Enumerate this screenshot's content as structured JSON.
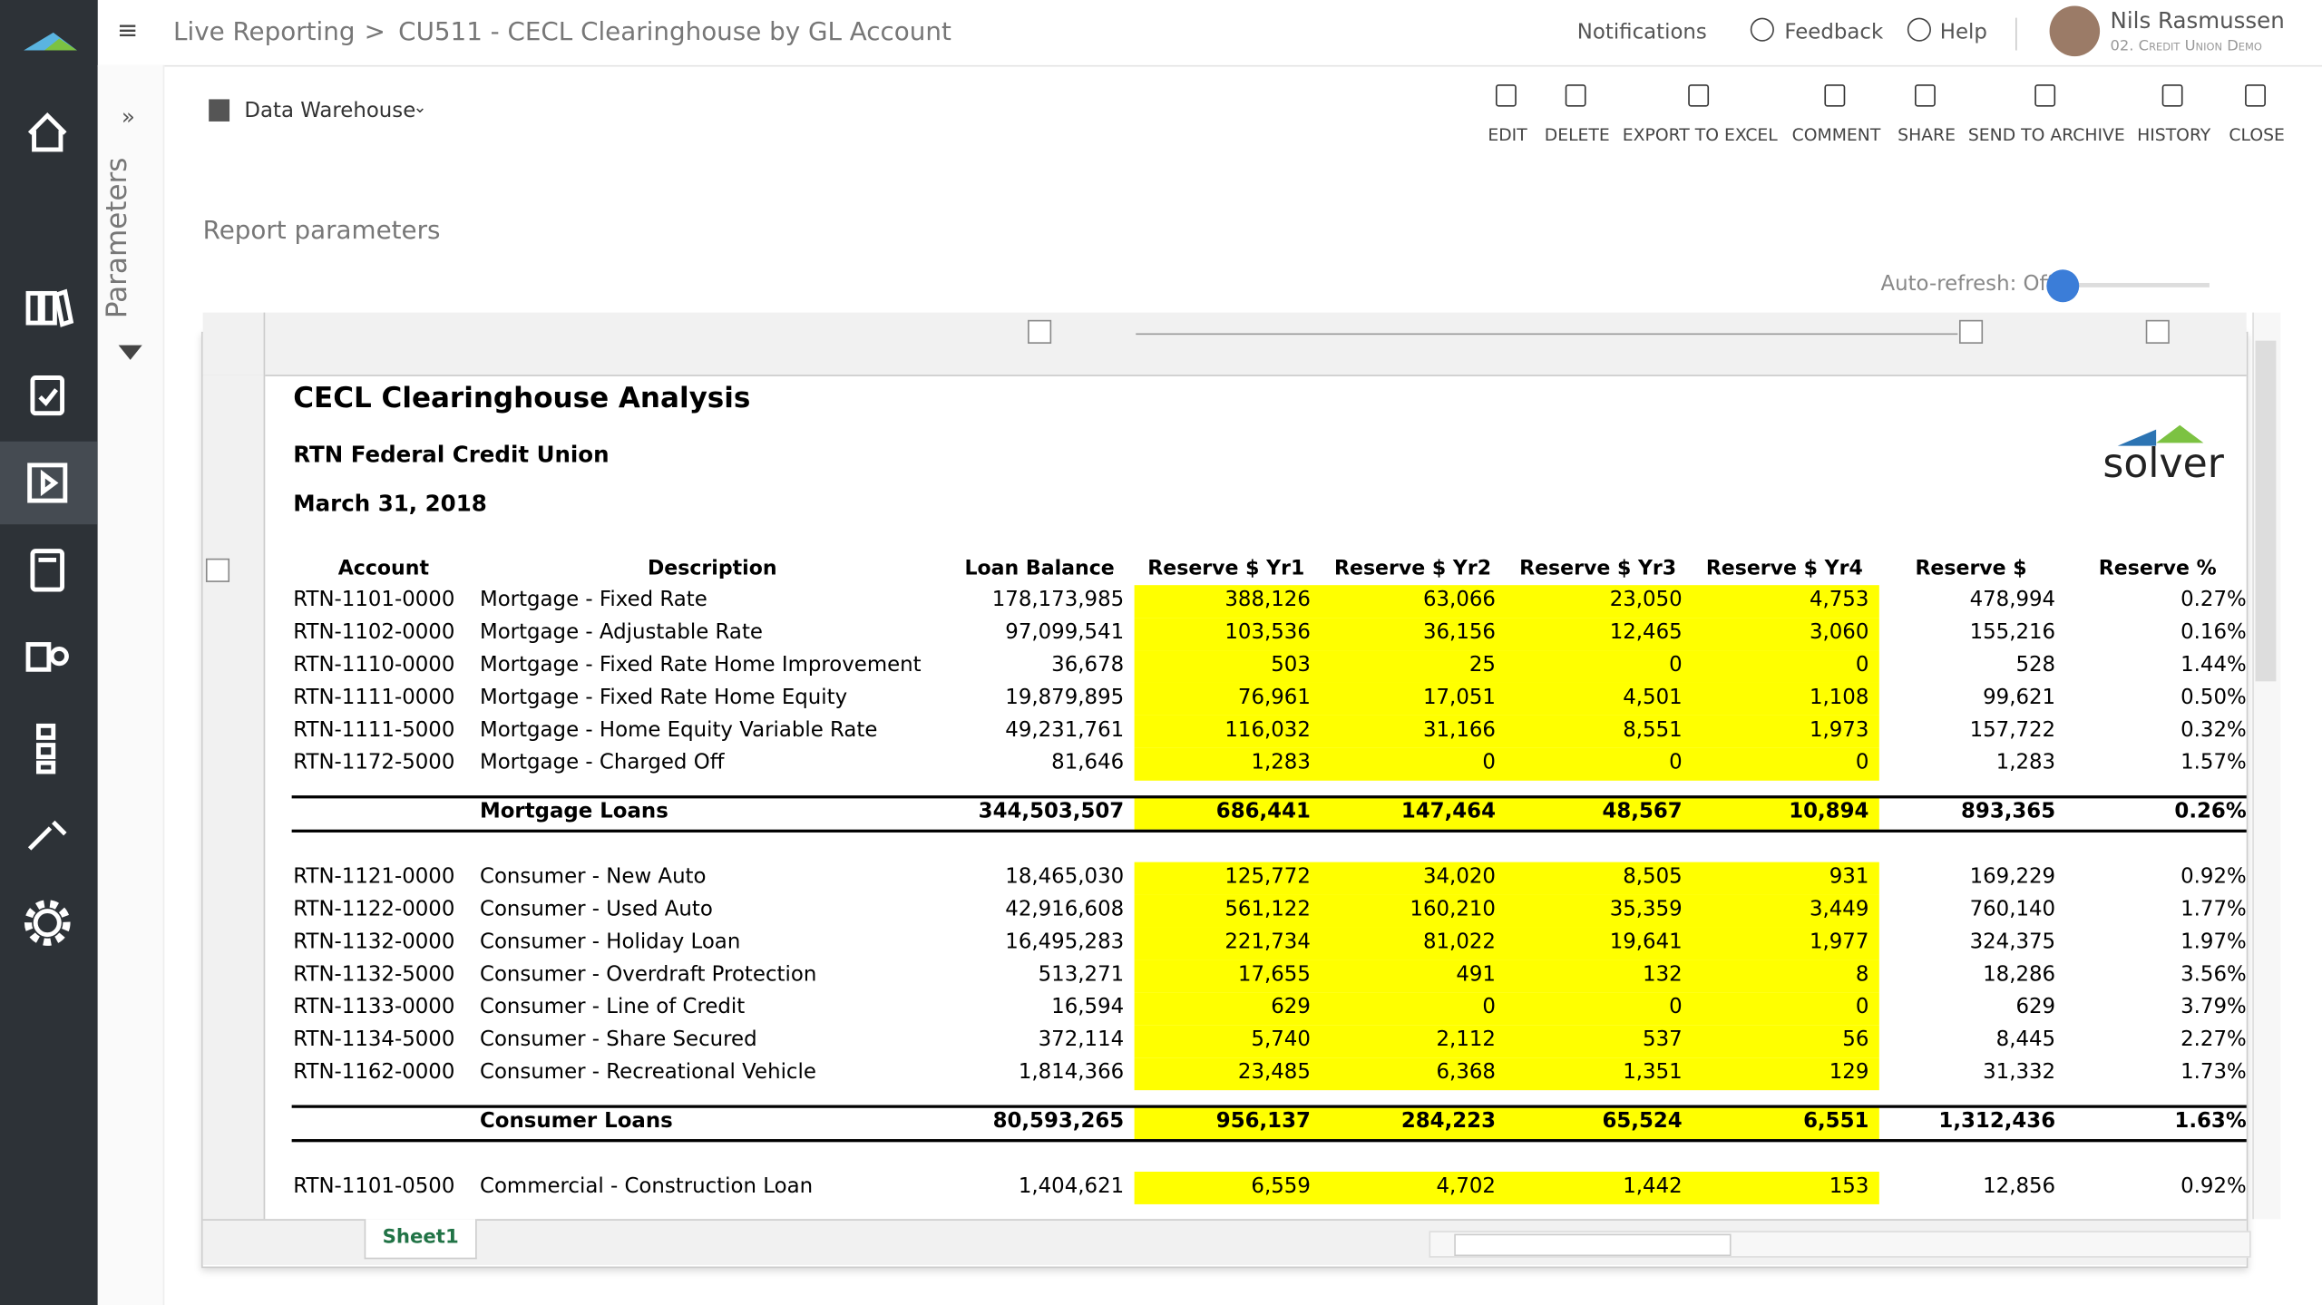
{
  "header": {
    "breadcrumb": {
      "root": "Live Reporting",
      "separator": ">",
      "page": "CU511 - CECL Clearinghouse by GL Account"
    },
    "notifications": "Notifications",
    "feedback": "Feedback",
    "help": "Help",
    "user": {
      "name": "Nils Rasmussen",
      "org": "02. Credit Union Demo"
    }
  },
  "sidebar": {
    "label": "Parameters"
  },
  "toolbar": {
    "source": "Data Warehouse",
    "actions": [
      "EDIT",
      "DELETE",
      "EXPORT TO EXCEL",
      "COMMENT",
      "SHARE",
      "SEND TO ARCHIVE",
      "HISTORY",
      "CLOSE"
    ]
  },
  "report_parameters": "Report parameters",
  "auto_refresh": "Auto-refresh: Off",
  "report": {
    "title": "CECL Clearinghouse Analysis",
    "org": "RTN Federal Credit Union",
    "date": "March 31, 2018",
    "logo": "solver",
    "columns": [
      "Account",
      "Description",
      "Loan Balance",
      "Reserve $ Yr1",
      "Reserve $ Yr2",
      "Reserve $ Yr3",
      "Reserve $ Yr4",
      "Reserve $",
      "Reserve %"
    ],
    "sections": [
      {
        "rows": [
          [
            "RTN-1101-0000",
            "Mortgage - Fixed Rate",
            "178,173,985",
            "388,126",
            "63,066",
            "23,050",
            "4,753",
            "478,994",
            "0.27%"
          ],
          [
            "RTN-1102-0000",
            "Mortgage - Adjustable Rate",
            "97,099,541",
            "103,536",
            "36,156",
            "12,465",
            "3,060",
            "155,216",
            "0.16%"
          ],
          [
            "RTN-1110-0000",
            "Mortgage - Fixed Rate Home Improvement",
            "36,678",
            "503",
            "25",
            "0",
            "0",
            "528",
            "1.44%"
          ],
          [
            "RTN-1111-0000",
            "Mortgage - Fixed Rate Home Equity",
            "19,879,895",
            "76,961",
            "17,051",
            "4,501",
            "1,108",
            "99,621",
            "0.50%"
          ],
          [
            "RTN-1111-5000",
            "Mortgage - Home Equity Variable Rate",
            "49,231,761",
            "116,032",
            "31,166",
            "8,551",
            "1,973",
            "157,722",
            "0.32%"
          ],
          [
            "RTN-1172-5000",
            "Mortgage - Charged Off",
            "81,646",
            "1,283",
            "0",
            "0",
            "0",
            "1,283",
            "1.57%"
          ]
        ],
        "total": [
          "Mortgage Loans",
          "344,503,507",
          "686,441",
          "147,464",
          "48,567",
          "10,894",
          "893,365",
          "0.26%"
        ]
      },
      {
        "rows": [
          [
            "RTN-1121-0000",
            "Consumer - New Auto",
            "18,465,030",
            "125,772",
            "34,020",
            "8,505",
            "931",
            "169,229",
            "0.92%"
          ],
          [
            "RTN-1122-0000",
            "Consumer - Used Auto",
            "42,916,608",
            "561,122",
            "160,210",
            "35,359",
            "3,449",
            "760,140",
            "1.77%"
          ],
          [
            "RTN-1132-0000",
            "Consumer - Holiday Loan",
            "16,495,283",
            "221,734",
            "81,022",
            "19,641",
            "1,977",
            "324,375",
            "1.97%"
          ],
          [
            "RTN-1132-5000",
            "Consumer - Overdraft Protection",
            "513,271",
            "17,655",
            "491",
            "132",
            "8",
            "18,286",
            "3.56%"
          ],
          [
            "RTN-1133-0000",
            "Consumer - Line of Credit",
            "16,594",
            "629",
            "0",
            "0",
            "0",
            "629",
            "3.79%"
          ],
          [
            "RTN-1134-5000",
            "Consumer - Share Secured",
            "372,114",
            "5,740",
            "2,112",
            "537",
            "56",
            "8,445",
            "2.27%"
          ],
          [
            "RTN-1162-0000",
            "Consumer - Recreational Vehicle",
            "1,814,366",
            "23,485",
            "6,368",
            "1,351",
            "129",
            "31,332",
            "1.73%"
          ]
        ],
        "total": [
          "Consumer Loans",
          "80,593,265",
          "956,137",
          "284,223",
          "65,524",
          "6,551",
          "1,312,436",
          "1.63%"
        ]
      },
      {
        "rows": [
          [
            "RTN-1101-0500",
            "Commercial - Construction Loan",
            "1,404,621",
            "6,559",
            "4,702",
            "1,442",
            "153",
            "12,856",
            "0.92%"
          ]
        ]
      }
    ]
  },
  "sheet_tab": "Sheet1"
}
